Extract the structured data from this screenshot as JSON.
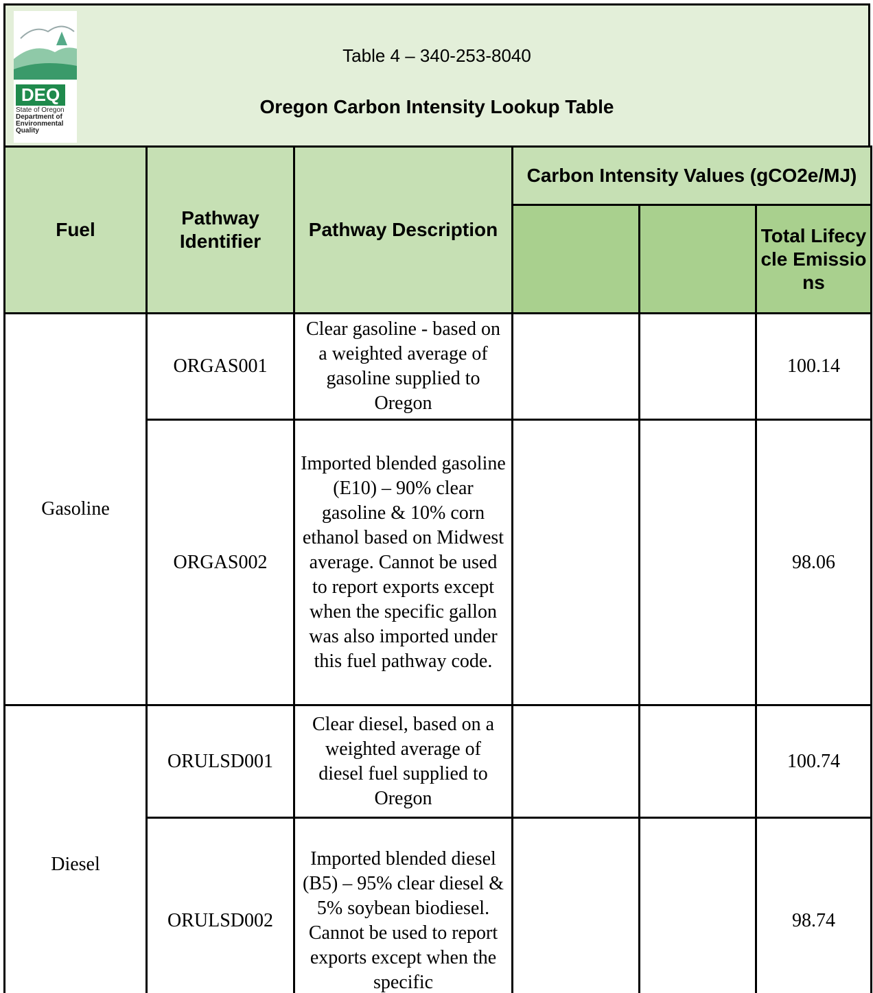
{
  "header": {
    "logo": {
      "acronym": "DEQ",
      "lines": [
        "State of Oregon",
        "Department of",
        "Environmental",
        "Quality"
      ]
    },
    "table_number": "Table 4 – 340-253-8040",
    "title": "Oregon Carbon Intensity Lookup Table"
  },
  "table": {
    "columns": [
      "Fuel",
      "Pathway Identifier",
      "Pathway Description"
    ],
    "group_header": "Carbon Intensity Values (gCO2e/MJ)",
    "total_header": "Total Lifecycle Emissions",
    "groups": [
      {
        "fuel": "Gasoline",
        "pathways": [
          {
            "id": "ORGAS001",
            "description": "Clear gasoline - based on a weighted average of gasoline supplied to Oregon",
            "total": 100.14
          },
          {
            "id": "ORGAS002",
            "description": "Imported blended gasoline (E10) – 90% clear gasoline & 10% corn ethanol based on Midwest average. Cannot be used to report exports except when the specific gallon was also imported under this fuel pathway code.",
            "total": 98.06
          }
        ]
      },
      {
        "fuel": "Diesel",
        "pathways": [
          {
            "id": "ORULSD001",
            "description": "Clear diesel, based on a weighted average of diesel fuel supplied to Oregon",
            "total": 100.74
          },
          {
            "id": "ORULSD002",
            "description": "Imported blended diesel (B5) – 95% clear diesel & 5% soybean biodiesel. Cannot be used to report exports except when the specific",
            "total": 98.74
          }
        ]
      }
    ]
  }
}
